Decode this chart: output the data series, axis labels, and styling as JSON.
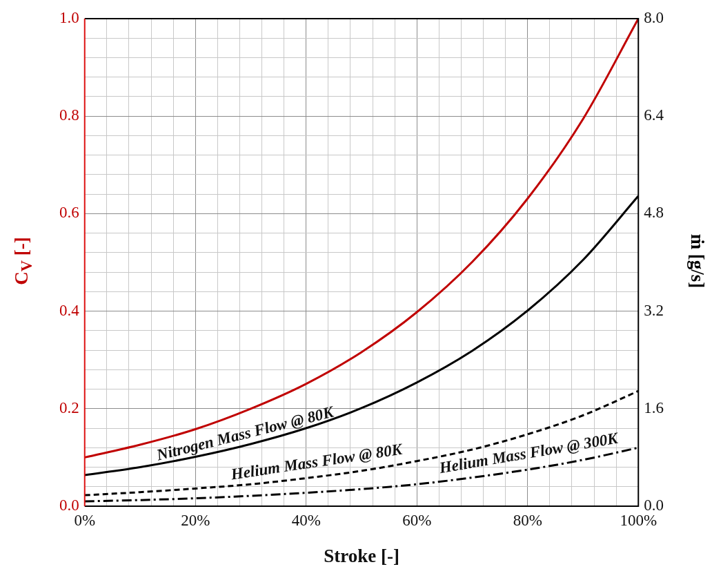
{
  "chart_data": {
    "type": "line",
    "xlabel": "Stroke [-]",
    "ylabel": "C$_{V}$ [-]",
    "y2label": "ṁ [g/s]",
    "x": [
      0,
      10,
      20,
      30,
      40,
      50,
      60,
      70,
      80,
      90,
      100
    ],
    "series": [
      {
        "color": "#c00000",
        "line_style": "solid",
        "values": [
          0.1,
          0.126,
          0.158,
          0.2,
          0.251,
          0.316,
          0.398,
          0.501,
          0.631,
          0.794,
          1.0
        ]
      },
      {
        "color": "#000000",
        "axis": "y2",
        "line_style": "solid",
        "values": [
          0.51,
          0.64,
          0.81,
          1.02,
          1.28,
          1.61,
          2.03,
          2.55,
          3.21,
          4.04,
          5.09
        ]
      },
      {
        "color": "#000000",
        "axis": "y2",
        "line_style": "dashed",
        "values": [
          0.18,
          0.23,
          0.29,
          0.36,
          0.46,
          0.58,
          0.74,
          0.93,
          1.18,
          1.49,
          1.89
        ]
      },
      {
        "color": "#000000",
        "axis": "y2",
        "line_style": "dashdot",
        "values": [
          0.08,
          0.1,
          0.13,
          0.17,
          0.22,
          0.28,
          0.36,
          0.47,
          0.6,
          0.76,
          0.96
        ]
      }
    ],
    "annotations": [
      "Nitrogen Mass Flow @ 80K",
      "Helium Mass Flow @ 80K",
      "Helium Mass Flow @ 300K"
    ],
    "xlim": [
      0,
      100
    ],
    "xticks": [
      {
        "value": 0,
        "label": "0%"
      },
      {
        "value": 4,
        "label": null
      },
      {
        "value": 8,
        "label": null
      },
      {
        "value": 12,
        "label": null
      },
      {
        "value": 16,
        "label": null
      },
      {
        "value": 20,
        "label": "20%"
      },
      {
        "value": 24,
        "label": null
      },
      {
        "value": 28,
        "label": null
      },
      {
        "value": 32,
        "label": null
      },
      {
        "value": 36,
        "label": null
      },
      {
        "value": 40,
        "label": "40%"
      },
      {
        "value": 44,
        "label": null
      },
      {
        "value": 48,
        "label": null
      },
      {
        "value": 52,
        "label": null
      },
      {
        "value": 56,
        "label": null
      },
      {
        "value": 60,
        "label": "60%"
      },
      {
        "value": 64,
        "label": null
      },
      {
        "value": 68,
        "label": null
      },
      {
        "value": 72,
        "label": null
      },
      {
        "value": 76,
        "label": null
      },
      {
        "value": 80,
        "label": "80%"
      },
      {
        "value": 84,
        "label": null
      },
      {
        "value": 88,
        "label": null
      },
      {
        "value": 92,
        "label": null
      },
      {
        "value": 96,
        "label": null
      },
      {
        "value": 100,
        "label": "100%"
      }
    ],
    "ylim": [
      0,
      1
    ],
    "yticks": [
      {
        "value": 0,
        "label": "0.0"
      },
      {
        "value": 0.04,
        "label": null
      },
      {
        "value": 0.08,
        "label": null
      },
      {
        "value": 0.12,
        "label": null
      },
      {
        "value": 0.16,
        "label": null
      },
      {
        "value": 0.2,
        "label": "0.2"
      },
      {
        "value": 0.24,
        "label": null
      },
      {
        "value": 0.28,
        "label": null
      },
      {
        "value": 0.32,
        "label": null
      },
      {
        "value": 0.36,
        "label": null
      },
      {
        "value": 0.4,
        "label": "0.4"
      },
      {
        "value": 0.44,
        "label": null
      },
      {
        "value": 0.48,
        "label": null
      },
      {
        "value": 0.52,
        "label": null
      },
      {
        "value": 0.56,
        "label": null
      },
      {
        "value": 0.6,
        "label": "0.6"
      },
      {
        "value": 0.64,
        "label": null
      },
      {
        "value": 0.68,
        "label": null
      },
      {
        "value": 0.72,
        "label": null
      },
      {
        "value": 0.76,
        "label": null
      },
      {
        "value": 0.8,
        "label": "0.8"
      },
      {
        "value": 0.84,
        "label": null
      },
      {
        "value": 0.88,
        "label": null
      },
      {
        "value": 0.92,
        "label": null
      },
      {
        "value": 0.96,
        "label": null
      },
      {
        "value": 1,
        "label": "1.0"
      }
    ],
    "y2lim": [
      0,
      8
    ],
    "y2ticks": [
      {
        "value": 0,
        "label": "0.0"
      },
      {
        "value": 1.6,
        "label": "1.6"
      },
      {
        "value": 3.2,
        "label": "3.2"
      },
      {
        "value": 4.8,
        "label": "4.8"
      },
      {
        "value": 6.4,
        "label": "6.4"
      },
      {
        "value": 8,
        "label": "8.0"
      }
    ],
    "grid": true,
    "legend": false,
    "marker": "none"
  }
}
